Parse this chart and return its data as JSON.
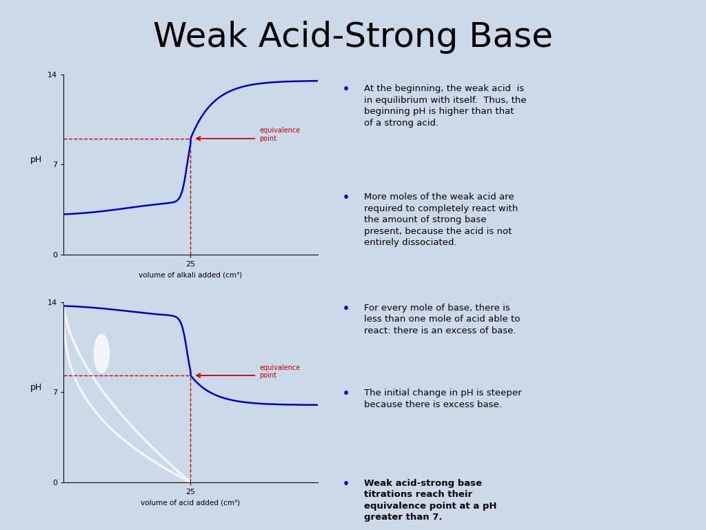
{
  "title": "Weak Acid-Strong Base",
  "title_fontsize": 36,
  "bg_color": "#ccd9e8",
  "curve_color": "#0000cc",
  "dashed_color": "#cc0000",
  "arrow_color": "#cc0000",
  "eq_label_color": "#cc0000",
  "axis_label_color": "#000000",
  "bullet_color": "#0000cc",
  "text_color": "#000000",
  "plot1_xlabel": "volume of alkali added (cm³)",
  "plot1_ylabel": "pH",
  "plot2_xlabel": "volume of acid added (cm³)",
  "plot2_ylabel": "pH",
  "eq_label": "equivalence\npoint",
  "bullet_points": [
    {
      "text": "At the beginning, the weak acid  is\nin equilibrium with itself.  Thus, the\nbeginning pH is higher than that\nof a strong acid.",
      "bold": false
    },
    {
      "text": "More moles of the weak acid are\nrequired to completely react with\nthe amount of strong base\npresent, because the acid is not\nentirely dissociated.",
      "bold": false
    },
    {
      "text": "For every mole of base, there is\nless than one mole of acid able to\nreact: there is an excess of base.",
      "bold": false
    },
    {
      "text": "The initial change in pH is steeper\nbecause there is excess base.",
      "bold": false
    },
    {
      "text": "Weak acid-strong base\ntitrations reach their\nequivalence point at a pH\ngreater than 7.",
      "bold": true
    }
  ]
}
